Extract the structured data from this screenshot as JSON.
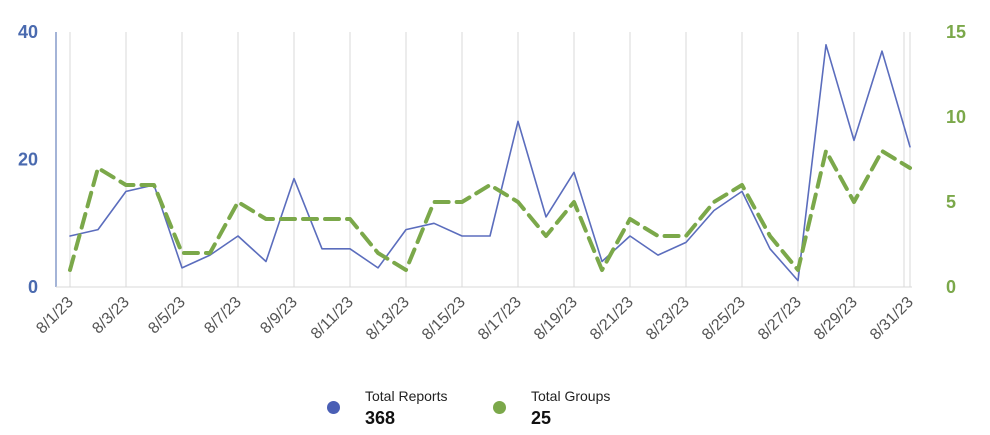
{
  "chart_data": {
    "type": "line",
    "x": [
      "8/1/23",
      "8/2/23",
      "8/3/23",
      "8/4/23",
      "8/5/23",
      "8/6/23",
      "8/7/23",
      "8/8/23",
      "8/9/23",
      "8/10/23",
      "8/11/23",
      "8/12/23",
      "8/13/23",
      "8/14/23",
      "8/15/23",
      "8/16/23",
      "8/17/23",
      "8/18/23",
      "8/19/23",
      "8/20/23",
      "8/21/23",
      "8/22/23",
      "8/23/23",
      "8/24/23",
      "8/25/23",
      "8/26/23",
      "8/27/23",
      "8/28/23",
      "8/29/23",
      "8/30/23",
      "8/31/23"
    ],
    "tick_labels": [
      "8/1/23",
      "8/3/23",
      "8/5/23",
      "8/7/23",
      "8/9/23",
      "8/11/23",
      "8/13/23",
      "8/15/23",
      "8/17/23",
      "8/19/23",
      "8/21/23",
      "8/23/23",
      "8/25/23",
      "8/27/23",
      "8/29/23",
      "8/31/23"
    ],
    "series": [
      {
        "name": "Total Reports",
        "axis": "left",
        "color": "#5b6dbd",
        "style": "solid",
        "values": [
          8,
          9,
          15,
          16,
          3,
          5,
          8,
          4,
          17,
          6,
          6,
          3,
          9,
          10,
          8,
          8,
          26,
          11,
          18,
          4,
          8,
          5,
          7,
          12,
          15,
          6,
          1,
          38,
          23,
          37,
          22
        ]
      },
      {
        "name": "Total Groups",
        "axis": "right",
        "color": "#7ba84a",
        "style": "dashed",
        "values": [
          1,
          7,
          6,
          6,
          2,
          2,
          5,
          4,
          4,
          4,
          4,
          2,
          1,
          5,
          5,
          6,
          5,
          3,
          5,
          1,
          4,
          3,
          3,
          5,
          6,
          3,
          1,
          8,
          5,
          8,
          7
        ]
      }
    ],
    "y_left": {
      "ylim": [
        0,
        40
      ],
      "ticks": [
        "0",
        "20",
        "40"
      ],
      "color": "#4a6aaf"
    },
    "y_right": {
      "ylim": [
        0,
        15
      ],
      "ticks": [
        "0",
        "5",
        "10",
        "15"
      ],
      "color": "#7ba84a"
    },
    "grid": "vertical",
    "legend_placement": "bottom-center"
  },
  "legend": {
    "items": [
      {
        "label": "Total Reports",
        "value": "368",
        "color": "#4a5fb5"
      },
      {
        "label": "Total Groups",
        "value": "25",
        "color": "#7ba84a"
      }
    ]
  }
}
